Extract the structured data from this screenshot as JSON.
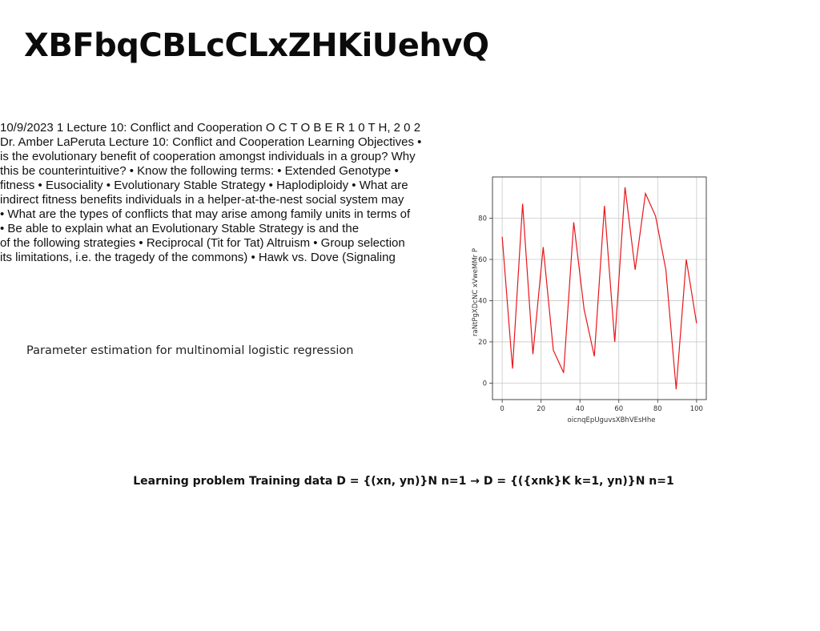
{
  "title": "XBFbqCBLcCLxZHKiUehvQ",
  "notes": {
    "lines": [
      "10/9/2023 1 Lecture 10: Conflict and Cooperation O C T O B E R 1 0 T H, 2 0 2",
      "Dr. Amber LaPeruta Lecture 10: Conflict and Cooperation Learning Objectives •",
      "is the evolutionary benefit of cooperation amongst individuals in a group? Why",
      "this be counterintuitive? • Know the following terms: • Extended Genotype •",
      "fitness • Eusociality • Evolutionary Stable Strategy • Haplodiploidy • What are",
      "indirect fitness benefits individuals in a helper-at-the-nest social system may",
      "• What are the types of conflicts that may arise among family units in terms of",
      "• Be able to explain what an Evolutionary Stable Strategy is and the",
      "of the following strategies • Reciprocal (Tit for Tat) Altruism • Group selection",
      "its limitations, i.e. the tragedy of the commons) • Hawk vs. Dove (Signaling"
    ]
  },
  "caption": "Parameter estimation for multinomial logistic regression",
  "formula": "Learning problem Training data D = {(xn, yn)}N n=1 → D = {({xnk}K k=1, yn)}N n=1",
  "chart_data": {
    "type": "line",
    "xlabel": "oicnqEpUguvsXBhVEsHhe",
    "ylabel": "raNtPgXDcNC xVweMMr P",
    "xlim": [
      -5,
      105
    ],
    "ylim": [
      -8,
      100
    ],
    "xticks": [
      0,
      20,
      40,
      60,
      80,
      100
    ],
    "yticks": [
      0,
      20,
      40,
      60,
      80
    ],
    "grid": true,
    "line_color": "#e8161b",
    "series": [
      {
        "x": [
          0,
          5.3,
          10.5,
          15.8,
          21.1,
          26.3,
          31.6,
          36.8,
          42.1,
          47.4,
          52.6,
          57.9,
          63.2,
          68.4,
          73.7,
          78.9,
          84.2,
          89.5,
          94.7,
          100
        ],
        "values": [
          71,
          7,
          87,
          14,
          66,
          16,
          5,
          78,
          36,
          13,
          86,
          20,
          95,
          55,
          92,
          81,
          55,
          -3,
          60,
          29
        ]
      }
    ]
  }
}
